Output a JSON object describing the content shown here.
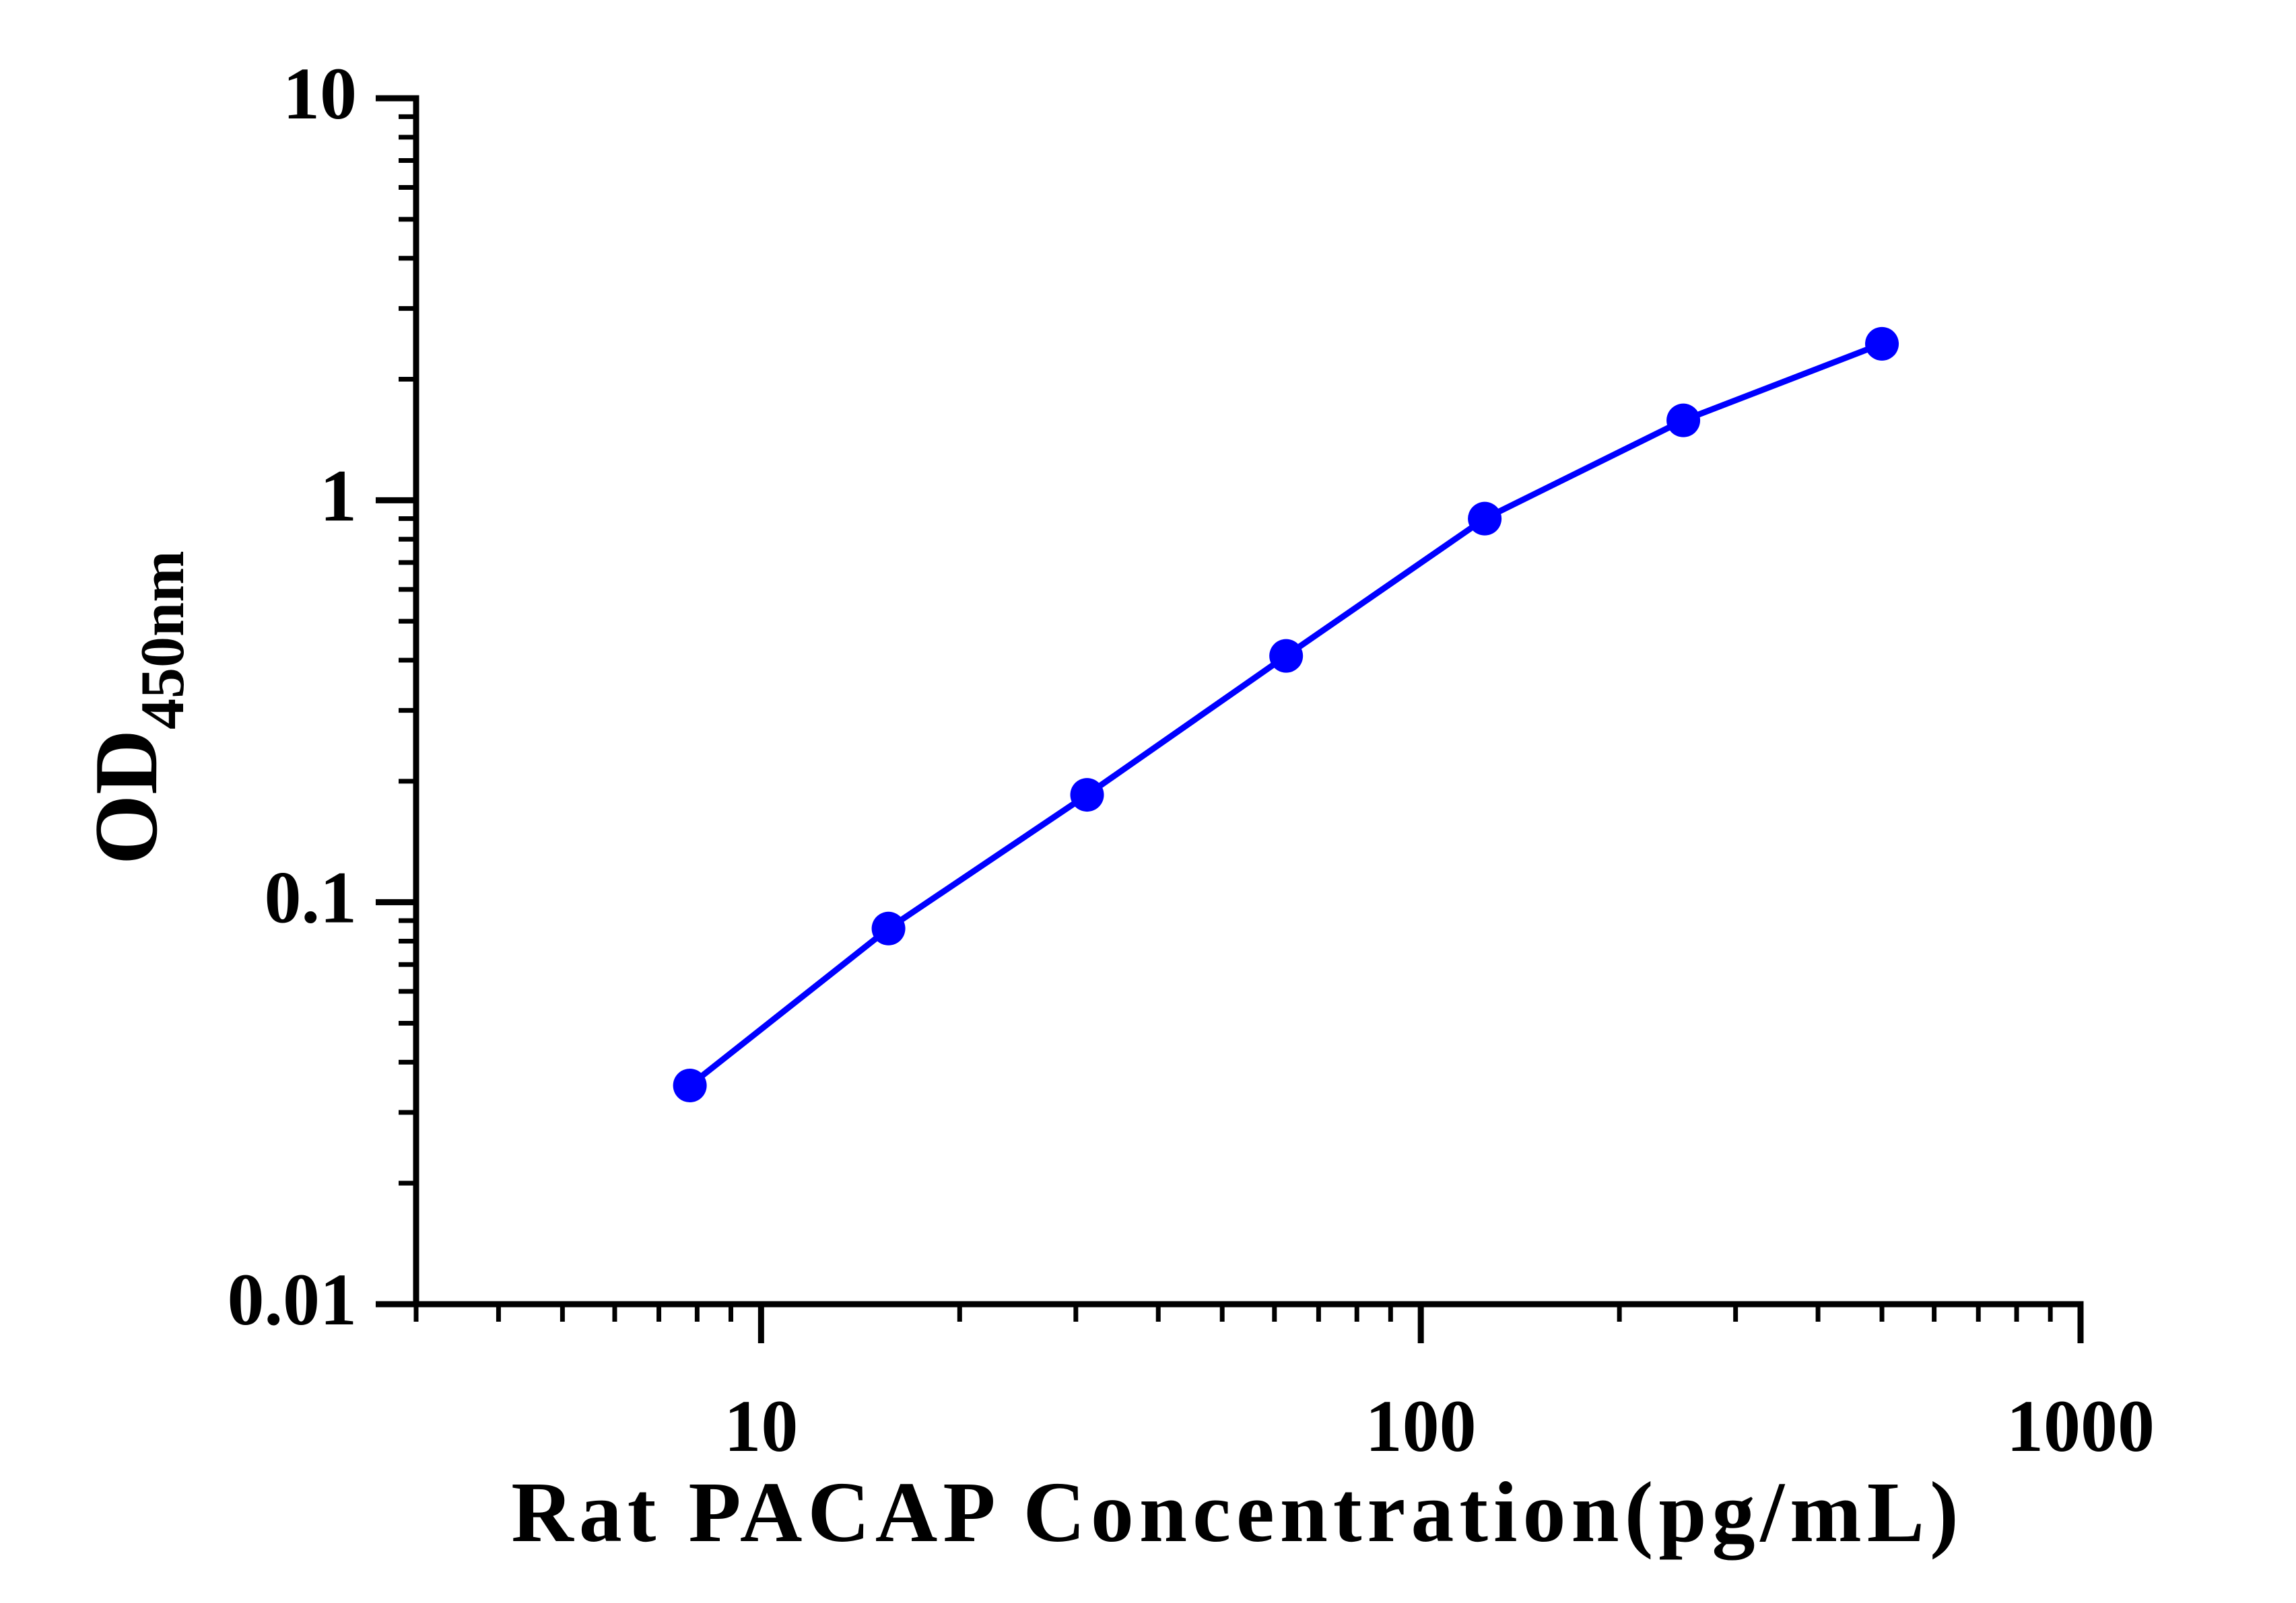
{
  "chart_data": {
    "type": "scatter",
    "title": "",
    "xlabel": "Rat PACAP Concentration(pg/mL)",
    "ylabel": "OD",
    "ylabel_subscript": "450nm",
    "xscale": "log",
    "yscale": "log",
    "xlim": [
      3,
      1000
    ],
    "ylim": [
      0.01,
      10
    ],
    "grid": false,
    "legend": "none",
    "x_major_ticks": [
      10,
      100,
      1000
    ],
    "x_tick_labels": [
      "10",
      "100",
      "1000"
    ],
    "y_major_ticks": [
      0.01,
      0.1,
      1,
      10
    ],
    "y_tick_labels": [
      "0.01",
      "0.1",
      "1",
      "10"
    ],
    "series": [
      {
        "color": "#0000ff",
        "marker": "circle",
        "connected": true,
        "x": [
          7.8,
          15.6,
          31.2,
          62.5,
          125,
          250,
          500
        ],
        "y": [
          0.035,
          0.086,
          0.185,
          0.41,
          0.9,
          1.58,
          2.45
        ]
      }
    ]
  }
}
